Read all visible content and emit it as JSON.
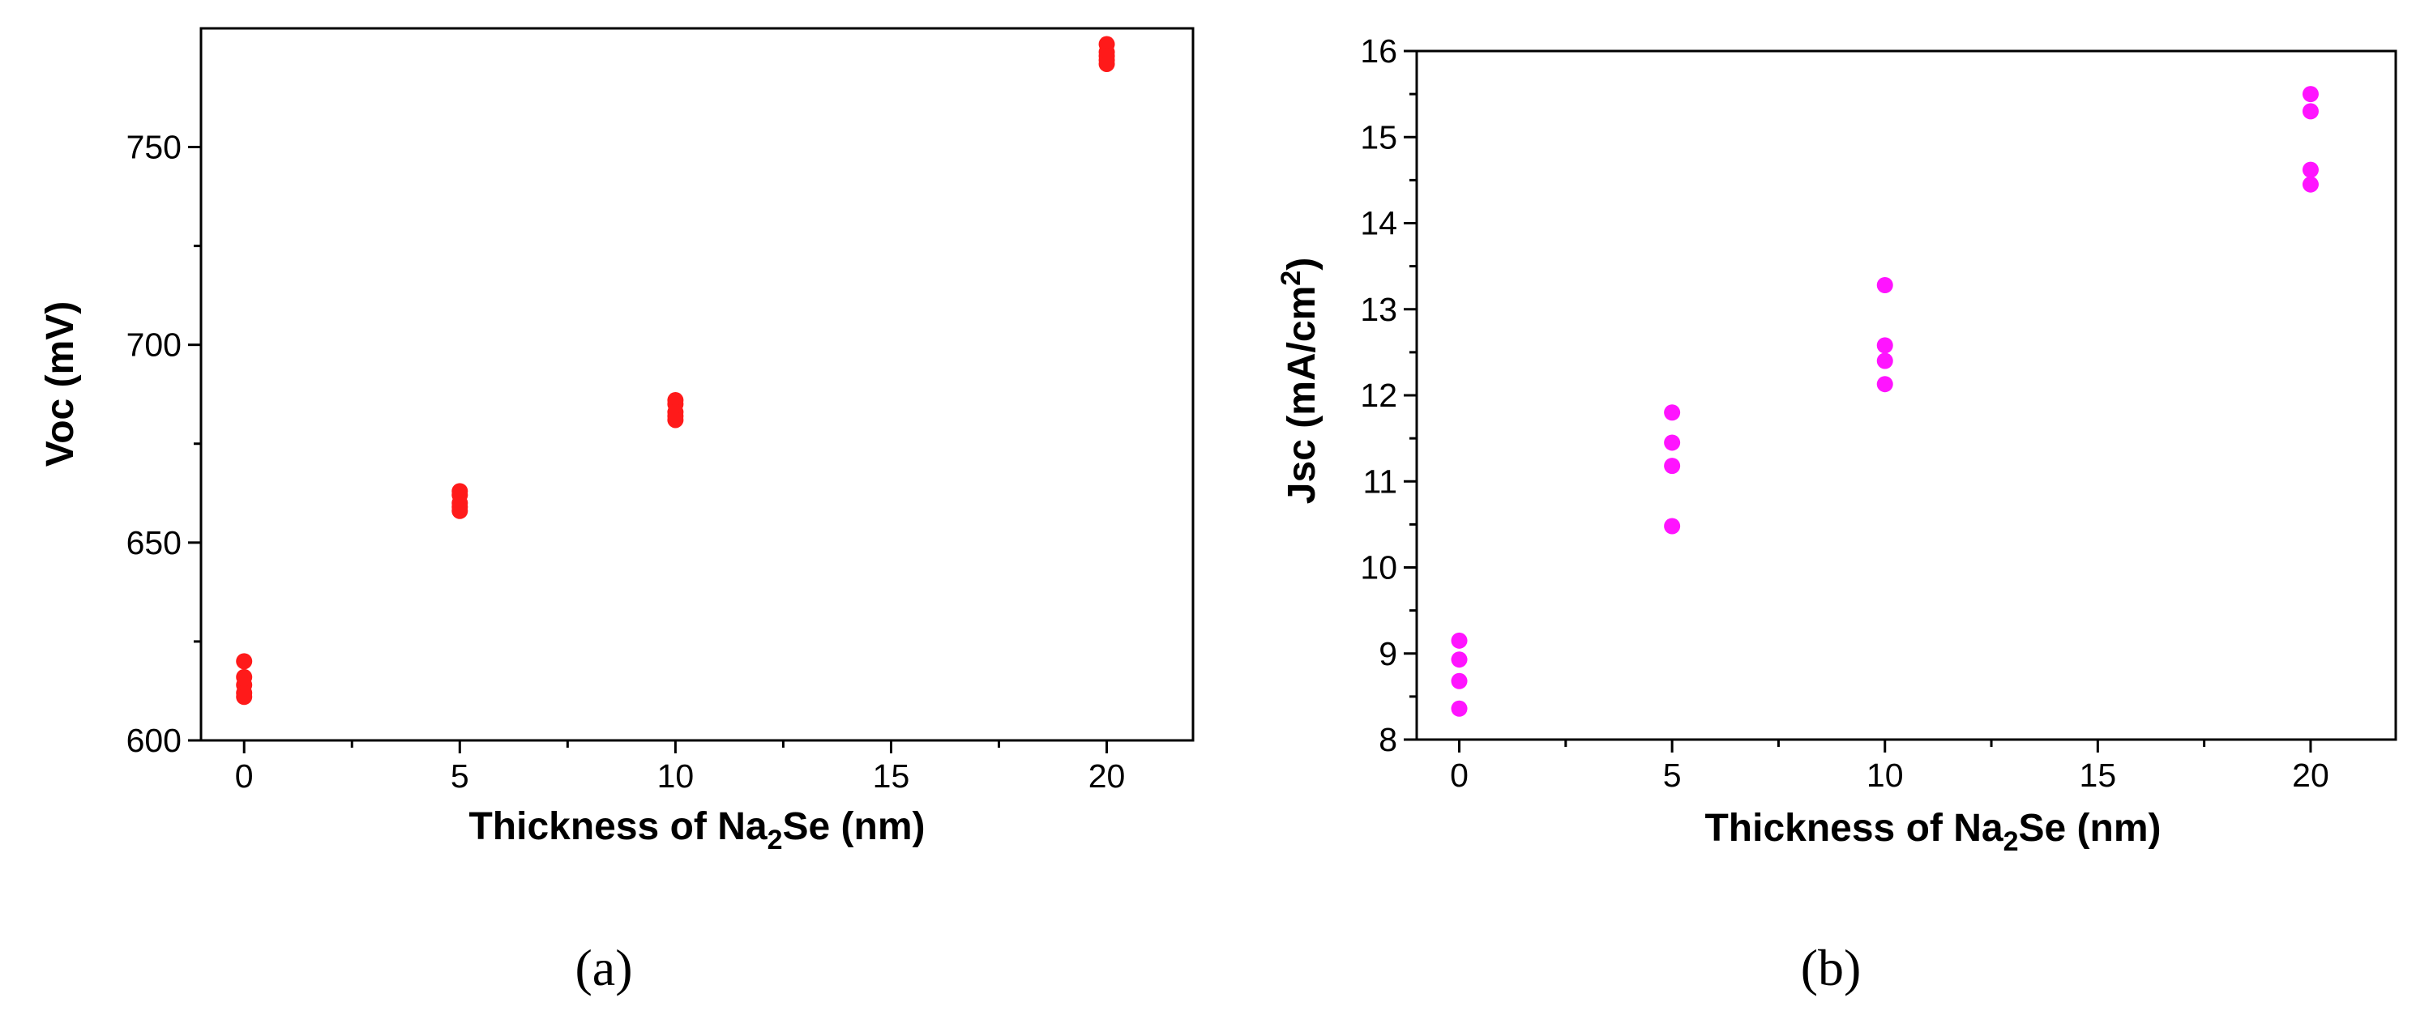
{
  "chart_data": [
    {
      "panel_label": "(a)",
      "type": "scatter",
      "color": "#ff1a1a",
      "xlabel": {
        "main": "Thickness of Na",
        "sub": "2",
        "tail": "Se (nm)"
      },
      "ylabel": {
        "main": "Voc (mV)",
        "sup": "",
        "tail": ""
      },
      "xlim": [
        -1,
        22
      ],
      "ylim": [
        600,
        780
      ],
      "xticks": [
        0,
        5,
        10,
        15,
        20
      ],
      "yticks": [
        600,
        650,
        700,
        750
      ],
      "points": [
        {
          "x": 0,
          "y": 620
        },
        {
          "x": 0,
          "y": 616
        },
        {
          "x": 0,
          "y": 614
        },
        {
          "x": 0,
          "y": 612
        },
        {
          "x": 0,
          "y": 611
        },
        {
          "x": 5,
          "y": 663
        },
        {
          "x": 5,
          "y": 662
        },
        {
          "x": 5,
          "y": 660
        },
        {
          "x": 5,
          "y": 659
        },
        {
          "x": 5,
          "y": 658
        },
        {
          "x": 10,
          "y": 686
        },
        {
          "x": 10,
          "y": 685
        },
        {
          "x": 10,
          "y": 683
        },
        {
          "x": 10,
          "y": 682
        },
        {
          "x": 10,
          "y": 681
        },
        {
          "x": 20,
          "y": 776
        },
        {
          "x": 20,
          "y": 774
        },
        {
          "x": 20,
          "y": 773
        },
        {
          "x": 20,
          "y": 772
        },
        {
          "x": 20,
          "y": 771
        }
      ]
    },
    {
      "panel_label": "(b)",
      "type": "scatter",
      "color": "#ff14ff",
      "xlabel": {
        "main": "Thickness of Na",
        "sub": "2",
        "tail": "Se (nm)"
      },
      "ylabel": {
        "main": "Jsc (mA/cm",
        "sup": "2",
        "tail": ")"
      },
      "xlim": [
        -1,
        22
      ],
      "ylim": [
        8,
        16
      ],
      "xticks": [
        0,
        5,
        10,
        15,
        20
      ],
      "yticks": [
        8,
        9,
        10,
        11,
        12,
        13,
        14,
        15,
        16
      ],
      "points": [
        {
          "x": 0,
          "y": 9.15
        },
        {
          "x": 0,
          "y": 8.93
        },
        {
          "x": 0,
          "y": 8.68
        },
        {
          "x": 0,
          "y": 8.36
        },
        {
          "x": 5,
          "y": 11.8
        },
        {
          "x": 5,
          "y": 11.45
        },
        {
          "x": 5,
          "y": 11.18
        },
        {
          "x": 5,
          "y": 10.48
        },
        {
          "x": 10,
          "y": 13.28
        },
        {
          "x": 10,
          "y": 12.58
        },
        {
          "x": 10,
          "y": 12.4
        },
        {
          "x": 10,
          "y": 12.13
        },
        {
          "x": 20,
          "y": 15.5
        },
        {
          "x": 20,
          "y": 15.3
        },
        {
          "x": 20,
          "y": 14.62
        },
        {
          "x": 20,
          "y": 14.45
        }
      ]
    }
  ]
}
